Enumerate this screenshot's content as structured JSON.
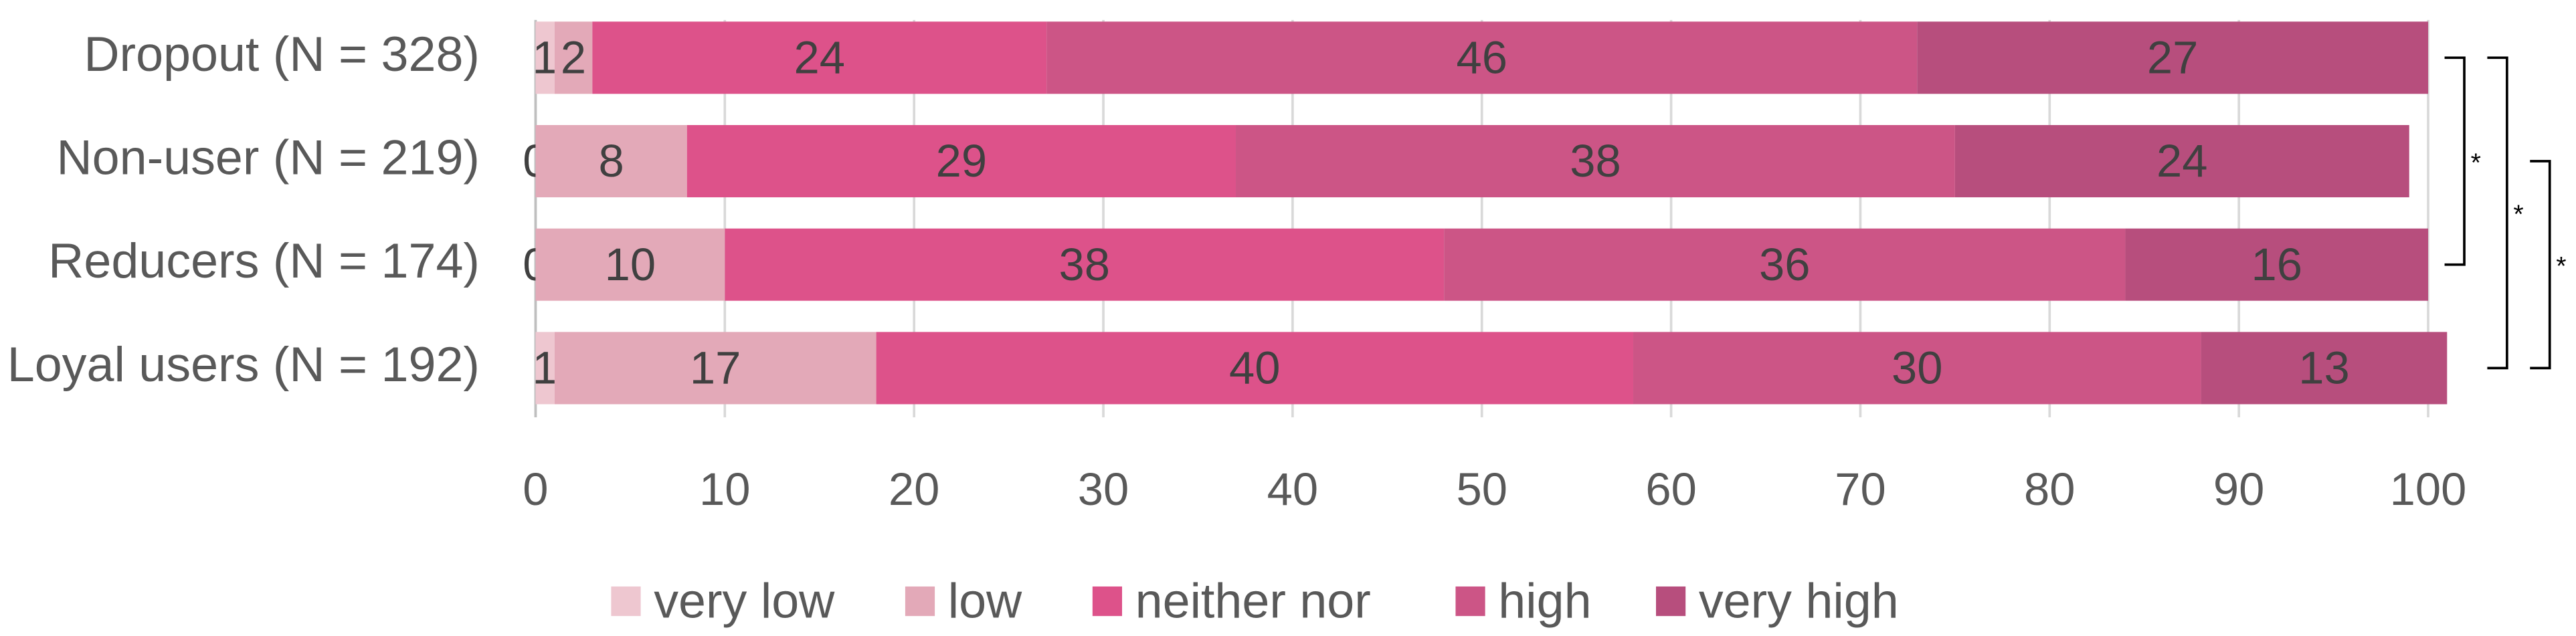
{
  "chart_data": {
    "type": "stacked-barh",
    "categories": [
      "Dropout (N = 328)",
      "Non-user (N = 219)",
      "Reducers (N = 174)",
      "Loyal users (N = 192)"
    ],
    "series": [
      {
        "name": "very low",
        "color": "#eec7d0",
        "values": [
          1,
          0,
          0,
          1
        ]
      },
      {
        "name": "low",
        "color": "#e3a9b8",
        "values": [
          2,
          8,
          10,
          17
        ]
      },
      {
        "name": "neither nor",
        "color": "#dd528a",
        "values": [
          24,
          29,
          38,
          40
        ]
      },
      {
        "name": "high",
        "color": "#cc5586",
        "values": [
          46,
          38,
          36,
          30
        ]
      },
      {
        "name": "very high",
        "color": "#b74e7d",
        "values": [
          27,
          24,
          16,
          13
        ]
      }
    ],
    "xlim": [
      0,
      100
    ],
    "xticks": [
      0,
      10,
      20,
      30,
      40,
      50,
      60,
      70,
      80,
      90,
      100
    ],
    "grid": true,
    "legend": "bottom",
    "annotations": [
      {
        "text": "*",
        "rows": [
          0,
          2
        ]
      },
      {
        "text": "*",
        "rows": [
          0,
          3
        ]
      },
      {
        "text": "*",
        "rows": [
          1,
          3
        ]
      }
    ]
  }
}
